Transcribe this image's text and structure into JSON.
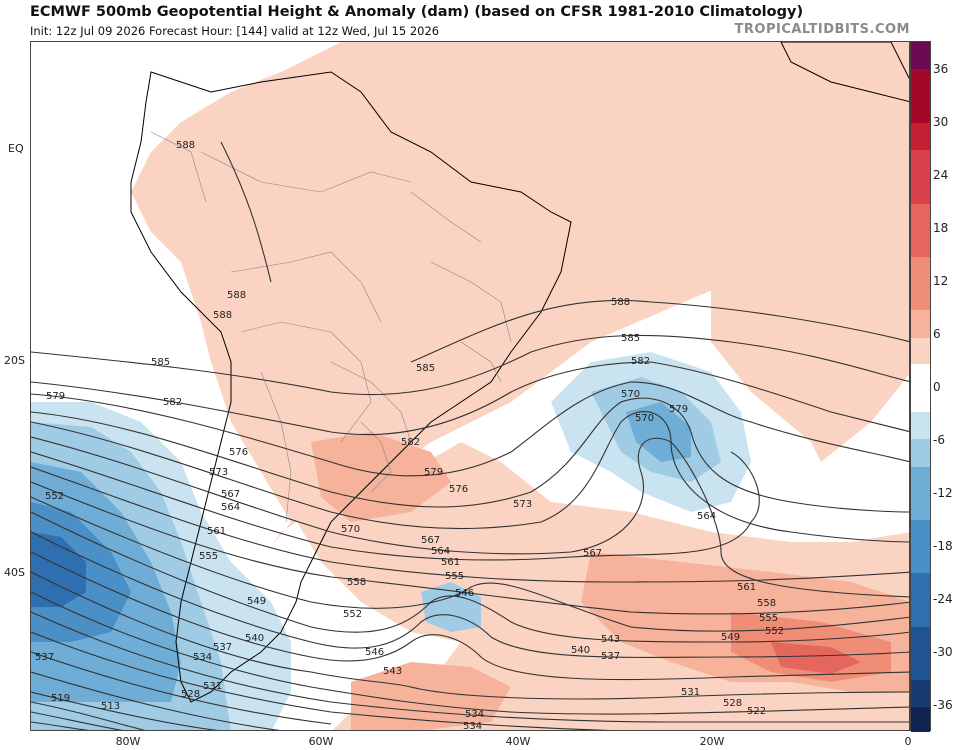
{
  "header": {
    "title": "ECMWF 500mb Geopotential Height & Anomaly (dam) (based on CFSR 1981-2010 Climatology)",
    "subtitle": "Init: 12z Jul 09 2026   Forecast Hour: [144]   valid at 12z Wed, Jul 15 2026",
    "brand": "TROPICALTIDBITS.COM"
  },
  "axes": {
    "lat_labels": [
      "EQ",
      "20S",
      "40S"
    ],
    "lon_labels": [
      "80W",
      "60W",
      "40W",
      "20W",
      "0"
    ]
  },
  "legend": {
    "labels": [
      "36",
      "30",
      "24",
      "18",
      "12",
      "6",
      "0",
      "-6",
      "-12",
      "-18",
      "-24",
      "-30",
      "-36"
    ],
    "colors": [
      "#6a0a55",
      "#a3082b",
      "#c31f32",
      "#d8404b",
      "#e5665c",
      "#f08d76",
      "#f6b29a",
      "#fbd3c2",
      "#ffffff",
      "#c9e3f0",
      "#9fcbe4",
      "#6fadd6",
      "#4a8fc6",
      "#2f6fb0",
      "#1f5391",
      "#173a70",
      "#0f2452"
    ]
  },
  "contours": {
    "labels": [
      "588",
      "588",
      "588",
      "588",
      "585",
      "585",
      "585",
      "582",
      "582",
      "582",
      "579",
      "579",
      "579",
      "576",
      "576",
      "573",
      "573",
      "570",
      "570",
      "570",
      "567",
      "567",
      "567",
      "564",
      "564",
      "564",
      "561",
      "561",
      "561",
      "558",
      "558",
      "555",
      "555",
      "555",
      "552",
      "552",
      "552",
      "549",
      "549",
      "546",
      "546",
      "543",
      "543",
      "540",
      "540",
      "537",
      "537",
      "537",
      "534",
      "534",
      "534",
      "531",
      "531",
      "528",
      "528",
      "522",
      "519",
      "513"
    ]
  },
  "colors": {
    "land": "#ffffff",
    "coast": "#000000",
    "borders": "#888888",
    "contour": "#333333"
  }
}
